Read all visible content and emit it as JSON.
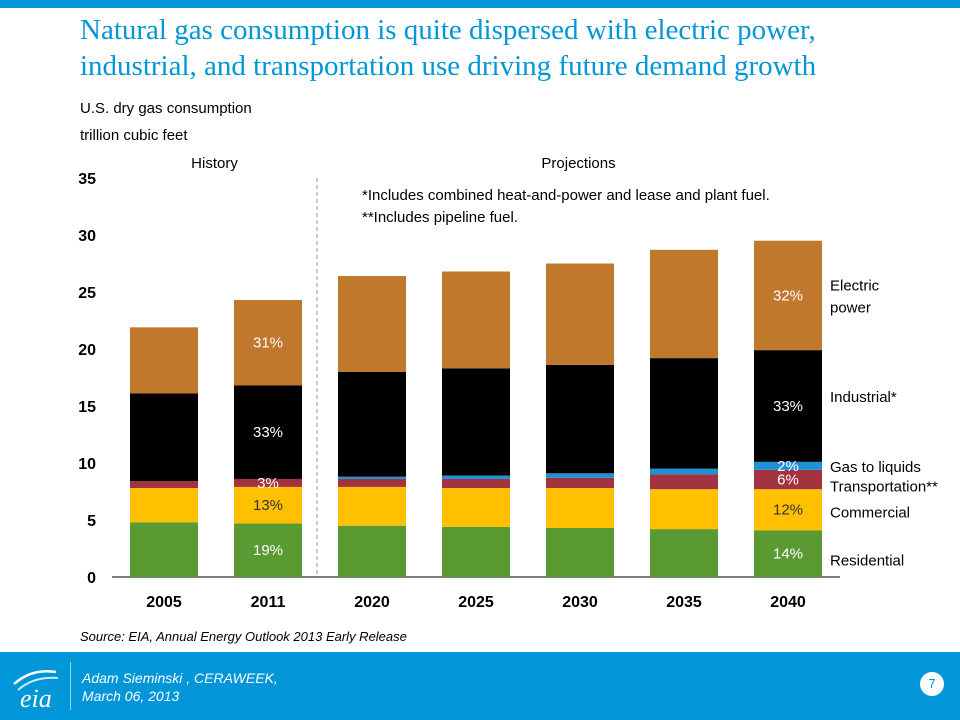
{
  "title_line1": "Natural gas consumption is quite dispersed with electric power,",
  "title_line2": "industrial, and transportation use driving future demand growth",
  "subtitle_line1": "U.S. dry gas consumption",
  "subtitle_line2": "trillion cubic feet",
  "footer": {
    "logo_text": "eia",
    "author_line": "Adam Sieminski , CERAWEEK,",
    "date_line": "March 06, 2013",
    "page_number": "7"
  },
  "colors": {
    "accent": "#0096d7",
    "residential": "#5b9a32",
    "commercial": "#ffc000",
    "transportation": "#a3323f",
    "gas_to_liquids": "#1e90d6",
    "industrial": "#000000",
    "electric_power": "#c0782c"
  },
  "chart_data": {
    "type": "bar",
    "stacked": true,
    "categories": [
      "2005",
      "2011",
      "2020",
      "2025",
      "2030",
      "2035",
      "2040"
    ],
    "ylim": [
      0,
      35
    ],
    "yticks": [
      0,
      5,
      10,
      15,
      20,
      25,
      30,
      35
    ],
    "grid": false,
    "period_labels": {
      "history": "History",
      "projections": "Projections"
    },
    "notes": [
      "*Includes combined heat-and-power and lease and plant fuel.",
      "**Includes pipeline fuel."
    ],
    "source": "Source:  EIA, Annual Energy Outlook 2013 Early Release",
    "series": [
      {
        "name": "Residential",
        "color": "#5b9a32",
        "values": [
          4.8,
          4.7,
          4.5,
          4.4,
          4.3,
          4.2,
          4.1
        ]
      },
      {
        "name": "Commercial",
        "color": "#ffc000",
        "values": [
          3.0,
          3.2,
          3.4,
          3.4,
          3.5,
          3.5,
          3.6
        ]
      },
      {
        "name": "Transportation**",
        "color": "#a3323f",
        "values": [
          0.6,
          0.7,
          0.7,
          0.8,
          0.9,
          1.3,
          1.7
        ]
      },
      {
        "name": "Gas to liquids",
        "color": "#1e90d6",
        "values": [
          0.0,
          0.0,
          0.2,
          0.3,
          0.4,
          0.5,
          0.7
        ]
      },
      {
        "name": "Industrial*",
        "color": "#000000",
        "values": [
          7.7,
          8.2,
          9.2,
          9.4,
          9.5,
          9.7,
          9.8
        ]
      },
      {
        "name": "Electric power",
        "color": "#c0782c",
        "values": [
          5.8,
          7.5,
          8.4,
          8.5,
          8.9,
          9.5,
          9.6
        ]
      }
    ],
    "legend_labels": [
      "Electric",
      "power",
      "Industrial*",
      "Gas to liquids",
      "Transportation**",
      "Commercial",
      "Residential"
    ],
    "data_labels": [
      {
        "category": "2011",
        "series": "Electric power",
        "text": "31%"
      },
      {
        "category": "2011",
        "series": "Industrial*",
        "text": "33%"
      },
      {
        "category": "2011",
        "series": "Transportation**",
        "text": "3%"
      },
      {
        "category": "2011",
        "series": "Commercial",
        "text": "13%"
      },
      {
        "category": "2011",
        "series": "Residential",
        "text": "19%"
      },
      {
        "category": "2040",
        "series": "Electric power",
        "text": "32%"
      },
      {
        "category": "2040",
        "series": "Industrial*",
        "text": "33%"
      },
      {
        "category": "2040",
        "series": "Gas to liquids",
        "text": "2%"
      },
      {
        "category": "2040",
        "series": "Transportation**",
        "text": "6%"
      },
      {
        "category": "2040",
        "series": "Commercial",
        "text": "12%"
      },
      {
        "category": "2040",
        "series": "Residential",
        "text": "14%"
      }
    ]
  }
}
